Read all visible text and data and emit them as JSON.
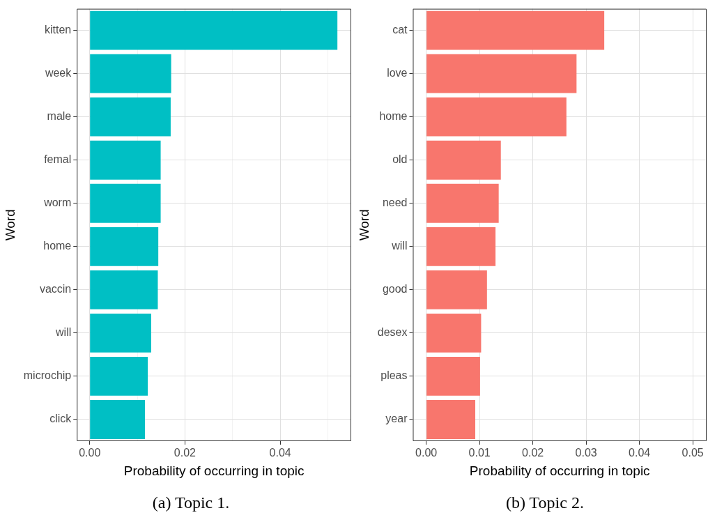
{
  "chart_data": [
    {
      "type": "bar",
      "orientation": "horizontal",
      "categories": [
        "kitten",
        "week",
        "male",
        "femal",
        "worm",
        "home",
        "vaccin",
        "will",
        "microchip",
        "click"
      ],
      "values": [
        0.052,
        0.0171,
        0.017,
        0.0149,
        0.0149,
        0.0144,
        0.0143,
        0.0129,
        0.0122,
        0.0116
      ],
      "color": "#00bfc4",
      "xlim": [
        -0.0027,
        0.0549
      ],
      "xticks": [
        {
          "value": 0,
          "label": "0.00"
        },
        {
          "value": 0.01,
          "label": null
        },
        {
          "value": 0.02,
          "label": "0.02"
        },
        {
          "value": 0.03,
          "label": null
        },
        {
          "value": 0.04,
          "label": "0.04"
        },
        {
          "value": 0.05,
          "label": null
        }
      ],
      "xlabel": "Probability of occurring in topic",
      "ylabel": "Word",
      "grid": true,
      "annotations": [
        "(a) Topic 1."
      ]
    },
    {
      "type": "bar",
      "orientation": "horizontal",
      "categories": [
        "cat",
        "love",
        "home",
        "old",
        "need",
        "will",
        "good",
        "desex",
        "pleas",
        "year"
      ],
      "values": [
        0.0334,
        0.0282,
        0.0263,
        0.014,
        0.0136,
        0.013,
        0.0114,
        0.0103,
        0.0101,
        0.0092
      ],
      "color": "#f8766d",
      "xlim": [
        -0.0025,
        0.0526
      ],
      "xticks": [
        {
          "value": 0,
          "label": "0.00"
        },
        {
          "value": 0.01,
          "label": "0.01"
        },
        {
          "value": 0.02,
          "label": "0.02"
        },
        {
          "value": 0.03,
          "label": "0.03"
        },
        {
          "value": 0.04,
          "label": "0.04"
        },
        {
          "value": 0.05,
          "label": "0.05"
        }
      ],
      "xlabel": "Probability of occurring in topic",
      "ylabel": "Word",
      "grid": true,
      "annotations": [
        "(b) Topic 2."
      ]
    }
  ]
}
